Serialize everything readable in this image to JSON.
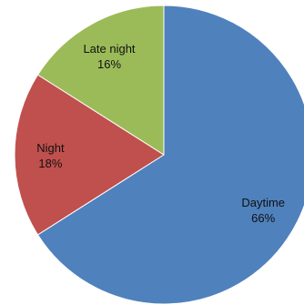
{
  "chart_data": {
    "type": "pie",
    "title": "",
    "start_angle_deg": 0,
    "direction": "clockwise",
    "slices": [
      {
        "label": "Daytime",
        "value": 66,
        "value_label": "66%",
        "color": "#4F81BD"
      },
      {
        "label": "Night",
        "value": 18,
        "value_label": "18%",
        "color": "#C0504D"
      },
      {
        "label": "Late night",
        "value": 16,
        "value_label": "16%",
        "color": "#9BBB59"
      }
    ]
  }
}
